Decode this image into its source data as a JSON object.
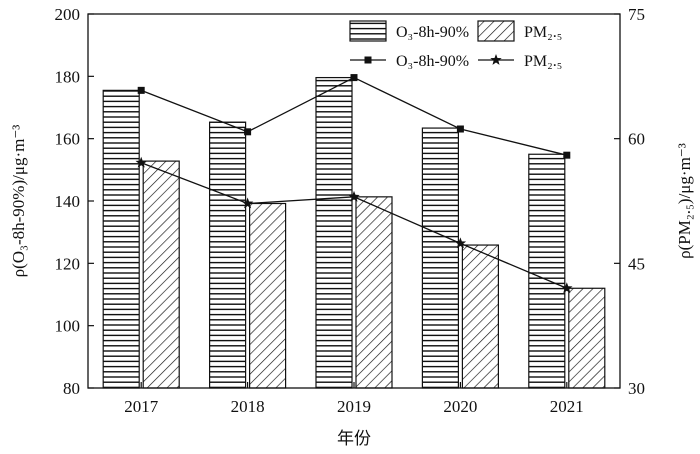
{
  "chart_data": {
    "type": "bar",
    "categories": [
      "2017",
      "2018",
      "2019",
      "2020",
      "2021"
    ],
    "xlabel": "年份",
    "ylabel_left": "ρ(O₃-8h-90%)/μg·m⁻³",
    "ylabel_right": "ρ(PM₂.₅)/μg·m⁻³",
    "ylim_left": [
      80,
      200
    ],
    "yticks_left": [
      "80",
      "100",
      "120",
      "140",
      "160",
      "180",
      "200"
    ],
    "ylim_right": [
      30,
      75
    ],
    "yticks_right": [
      "30",
      "45",
      "60",
      "75"
    ],
    "series": [
      {
        "name": "O₃-8h-90%",
        "kind": "bar",
        "axis": "left",
        "pattern": "horizontal-stripes",
        "values": [
          175.5,
          165.3,
          179.6,
          163.4,
          155.0
        ]
      },
      {
        "name": "PM₂.₅",
        "kind": "bar",
        "axis": "right",
        "pattern": "diagonal-hatch",
        "values": [
          57.3,
          52.2,
          53.0,
          47.2,
          42.0
        ]
      },
      {
        "name": "O₃-8h-90%",
        "kind": "line",
        "axis": "left",
        "marker": "square",
        "values": [
          175.5,
          162.2,
          179.6,
          163.1,
          154.7
        ]
      },
      {
        "name": "PM₂.₅",
        "kind": "line",
        "axis": "right",
        "marker": "star",
        "values": [
          57.1,
          52.2,
          53.0,
          47.4,
          42.0
        ]
      }
    ],
    "legend": {
      "placement": "top-right",
      "items": [
        {
          "label": "O₃-8h-90%",
          "symbol": "bar-horizontal-stripes"
        },
        {
          "label": "PM₂.₅",
          "symbol": "bar-diagonal-hatch"
        },
        {
          "label": "O₃-8h-90%",
          "symbol": "line-square"
        },
        {
          "label": "PM₂.₅",
          "symbol": "line-star"
        }
      ]
    }
  }
}
